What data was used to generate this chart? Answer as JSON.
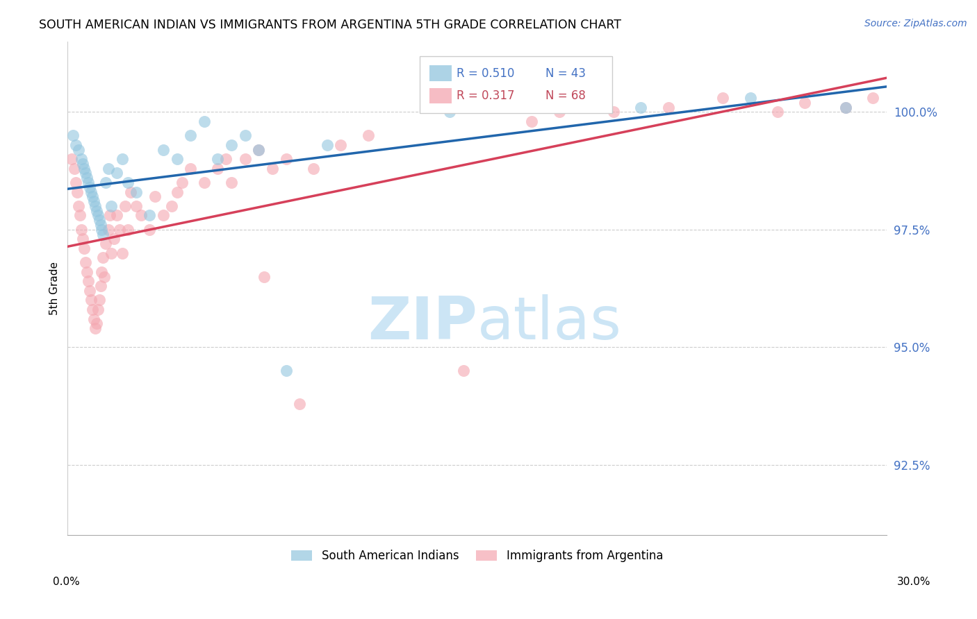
{
  "title": "SOUTH AMERICAN INDIAN VS IMMIGRANTS FROM ARGENTINA 5TH GRADE CORRELATION CHART",
  "source": "Source: ZipAtlas.com",
  "ylabel": "5th Grade",
  "yticks": [
    92.5,
    95.0,
    97.5,
    100.0
  ],
  "ytick_labels": [
    "92.5%",
    "95.0%",
    "97.5%",
    "100.0%"
  ],
  "xlim": [
    0.0,
    30.0
  ],
  "ylim": [
    91.0,
    101.5
  ],
  "legend_blue_r": "R = 0.510",
  "legend_blue_n": "N = 43",
  "legend_pink_r": "R = 0.317",
  "legend_pink_n": "N = 68",
  "blue_color": "#92c5de",
  "pink_color": "#f4a6b0",
  "blue_line_color": "#2166ac",
  "pink_line_color": "#d6405a",
  "legend_r_color_blue": "#4472c4",
  "legend_r_color_pink": "#c0485a",
  "watermark_zip": "ZIP",
  "watermark_atlas": "atlas",
  "watermark_color": "#cce5f5",
  "blue_scatter_x": [
    0.2,
    0.3,
    0.4,
    0.5,
    0.55,
    0.6,
    0.65,
    0.7,
    0.75,
    0.8,
    0.85,
    0.9,
    0.95,
    1.0,
    1.05,
    1.1,
    1.15,
    1.2,
    1.25,
    1.3,
    1.4,
    1.5,
    1.6,
    1.8,
    2.0,
    2.2,
    2.5,
    3.0,
    3.5,
    4.0,
    4.5,
    5.0,
    5.5,
    6.0,
    6.5,
    7.0,
    8.0,
    9.5,
    14.0,
    18.0,
    21.0,
    25.0,
    28.5
  ],
  "blue_scatter_y": [
    99.5,
    99.3,
    99.2,
    99.0,
    98.9,
    98.8,
    98.7,
    98.6,
    98.5,
    98.4,
    98.3,
    98.2,
    98.1,
    98.0,
    97.9,
    97.8,
    97.7,
    97.6,
    97.5,
    97.4,
    98.5,
    98.8,
    98.0,
    98.7,
    99.0,
    98.5,
    98.3,
    97.8,
    99.2,
    99.0,
    99.5,
    99.8,
    99.0,
    99.3,
    99.5,
    99.2,
    94.5,
    99.3,
    100.0,
    100.2,
    100.1,
    100.3,
    100.1
  ],
  "pink_scatter_x": [
    0.15,
    0.25,
    0.3,
    0.35,
    0.4,
    0.45,
    0.5,
    0.55,
    0.6,
    0.65,
    0.7,
    0.75,
    0.8,
    0.85,
    0.9,
    0.95,
    1.0,
    1.05,
    1.1,
    1.15,
    1.2,
    1.25,
    1.3,
    1.35,
    1.4,
    1.5,
    1.55,
    1.6,
    1.7,
    1.8,
    1.9,
    2.0,
    2.1,
    2.2,
    2.3,
    2.5,
    2.7,
    3.0,
    3.2,
    3.5,
    3.8,
    4.0,
    4.2,
    4.5,
    5.0,
    5.5,
    5.8,
    6.0,
    6.5,
    7.0,
    7.5,
    8.0,
    9.0,
    10.0,
    11.0,
    14.5,
    17.0,
    18.0,
    19.0,
    20.0,
    22.0,
    24.0,
    26.0,
    27.0,
    28.5,
    29.5,
    7.2,
    8.5
  ],
  "pink_scatter_y": [
    99.0,
    98.8,
    98.5,
    98.3,
    98.0,
    97.8,
    97.5,
    97.3,
    97.1,
    96.8,
    96.6,
    96.4,
    96.2,
    96.0,
    95.8,
    95.6,
    95.4,
    95.5,
    95.8,
    96.0,
    96.3,
    96.6,
    96.9,
    96.5,
    97.2,
    97.5,
    97.8,
    97.0,
    97.3,
    97.8,
    97.5,
    97.0,
    98.0,
    97.5,
    98.3,
    98.0,
    97.8,
    97.5,
    98.2,
    97.8,
    98.0,
    98.3,
    98.5,
    98.8,
    98.5,
    98.8,
    99.0,
    98.5,
    99.0,
    99.2,
    98.8,
    99.0,
    98.8,
    99.3,
    99.5,
    94.5,
    99.8,
    100.0,
    100.2,
    100.0,
    100.1,
    100.3,
    100.0,
    100.2,
    100.1,
    100.3,
    96.5,
    93.8
  ]
}
